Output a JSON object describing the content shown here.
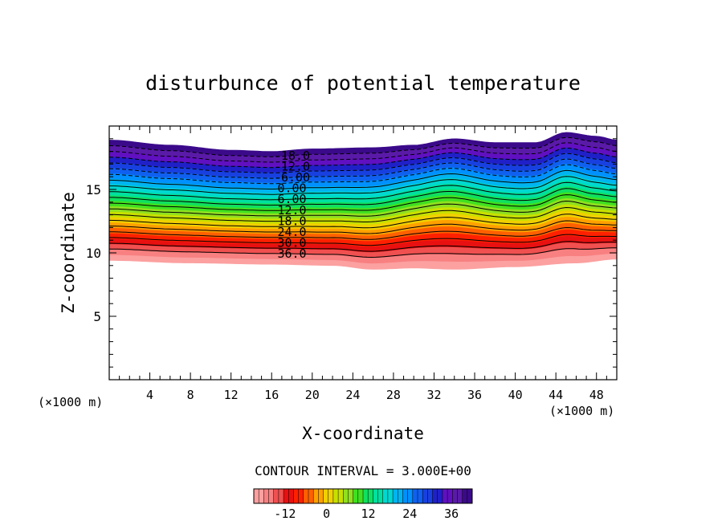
{
  "chart_data": {
    "type": "contour",
    "title": "disturbunce of potential temperature",
    "xlabel": "X-coordinate",
    "ylabel": "Z-coordinate",
    "x_unit": "(×1000 m)",
    "x_unit_right": "(×1000 m)",
    "xlim": [
      0,
      50
    ],
    "ylim": [
      0,
      20
    ],
    "xticks": [
      4,
      8,
      12,
      16,
      20,
      24,
      28,
      32,
      36,
      40,
      44,
      48
    ],
    "xtick_labels": [
      "4",
      "8",
      "12",
      "16",
      "20",
      "24",
      "28",
      "32",
      "36",
      "40",
      "44",
      "48"
    ],
    "yticks": [
      5,
      10,
      15
    ],
    "ytick_labels": [
      "5",
      "10",
      "15"
    ],
    "contour_interval": "CONTOUR INTERVAL = 3.000E+00",
    "contour_labels": [
      "-18.0",
      "-12.0",
      "-6.00",
      "0.00",
      "6.00",
      "12.0",
      "18.0",
      "24.0",
      "30.0",
      "36.0"
    ],
    "colorbar_ticks": [
      "-12",
      "0",
      "12",
      "24",
      "36"
    ],
    "colorbar_range": [
      -21,
      42
    ],
    "top_surface": [
      [
        0,
        18.9
      ],
      [
        6,
        18.5
      ],
      [
        12,
        18.1
      ],
      [
        16,
        18.0
      ],
      [
        20,
        18.2
      ],
      [
        26,
        18.3
      ],
      [
        30,
        18.5
      ],
      [
        34,
        19.0
      ],
      [
        38,
        18.7
      ],
      [
        42,
        18.7
      ],
      [
        45,
        19.5
      ],
      [
        48,
        19.2
      ],
      [
        50,
        18.9
      ]
    ],
    "bottom_surface": [
      [
        0,
        9.4
      ],
      [
        8,
        9.2
      ],
      [
        16,
        9.1
      ],
      [
        22,
        9.0
      ],
      [
        26,
        8.7
      ],
      [
        30,
        8.8
      ],
      [
        34,
        8.7
      ],
      [
        40,
        8.9
      ],
      [
        46,
        9.2
      ],
      [
        50,
        9.5
      ]
    ],
    "levels": [
      -18,
      -15,
      -12,
      -9,
      -6,
      -3,
      0,
      3,
      6,
      9,
      12,
      15,
      18,
      21,
      24,
      27,
      30,
      33,
      36
    ],
    "colors": [
      "#3a0a8a",
      "#5a1aa8",
      "#6010c0",
      "#2020c8",
      "#1840e0",
      "#1060f0",
      "#0090ff",
      "#00b4f0",
      "#00d8d0",
      "#00e0a0",
      "#10e060",
      "#40e020",
      "#90e020",
      "#c8e000",
      "#f0d000",
      "#ffa000",
      "#ff6000",
      "#ff2000",
      "#e81010",
      "#f05050",
      "#f88080",
      "#fca0a0"
    ]
  }
}
